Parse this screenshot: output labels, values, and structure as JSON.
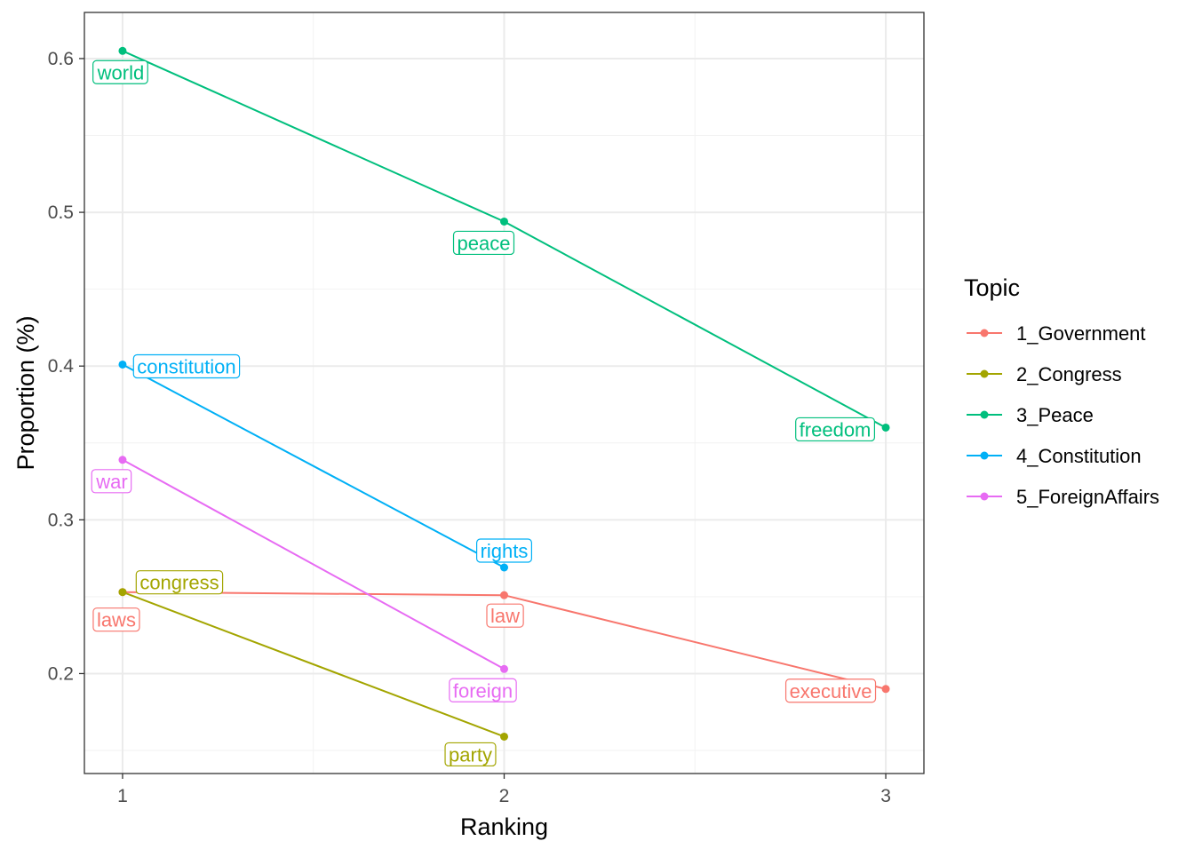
{
  "chart_data": {
    "type": "line",
    "title": "",
    "xlabel": "Ranking",
    "ylabel": "Proportion (%)",
    "xlim": [
      0.9,
      3.1
    ],
    "ylim": [
      0.135,
      0.63
    ],
    "x_ticks": [
      1,
      2,
      3
    ],
    "x_tick_labels": [
      "1",
      "2",
      "3"
    ],
    "y_ticks": [
      0.2,
      0.3,
      0.4,
      0.5,
      0.6
    ],
    "y_tick_labels": [
      "0.2",
      "0.3",
      "0.4",
      "0.5",
      "0.6"
    ],
    "x_minor_ticks": [
      1.5,
      2.5
    ],
    "y_minor_ticks": [
      0.15,
      0.25,
      0.35,
      0.45,
      0.55
    ],
    "grid": true,
    "legend": {
      "title": "Topic",
      "placement": "right"
    },
    "series": [
      {
        "name": "1_Government",
        "color": "#F8766D",
        "points": [
          {
            "x": 1,
            "y": 0.253,
            "label": "laws"
          },
          {
            "x": 2,
            "y": 0.251,
            "label": "law"
          },
          {
            "x": 3,
            "y": 0.19,
            "label": "executive"
          }
        ]
      },
      {
        "name": "2_Congress",
        "color": "#A3A500",
        "points": [
          {
            "x": 1,
            "y": 0.253,
            "label": "congress"
          },
          {
            "x": 2,
            "y": 0.159,
            "label": "party"
          }
        ]
      },
      {
        "name": "3_Peace",
        "color": "#00BF7D",
        "points": [
          {
            "x": 1,
            "y": 0.605,
            "label": "world"
          },
          {
            "x": 2,
            "y": 0.494,
            "label": "peace"
          },
          {
            "x": 3,
            "y": 0.36,
            "label": "freedom"
          }
        ]
      },
      {
        "name": "4_Constitution",
        "color": "#00B0F6",
        "points": [
          {
            "x": 1,
            "y": 0.401,
            "label": "constitution"
          },
          {
            "x": 2,
            "y": 0.269,
            "label": "rights"
          }
        ]
      },
      {
        "name": "5_ForeignAffairs",
        "color": "#E76BF3",
        "points": [
          {
            "x": 1,
            "y": 0.339,
            "label": "war"
          },
          {
            "x": 2,
            "y": 0.203,
            "label": "foreign"
          }
        ]
      }
    ]
  }
}
